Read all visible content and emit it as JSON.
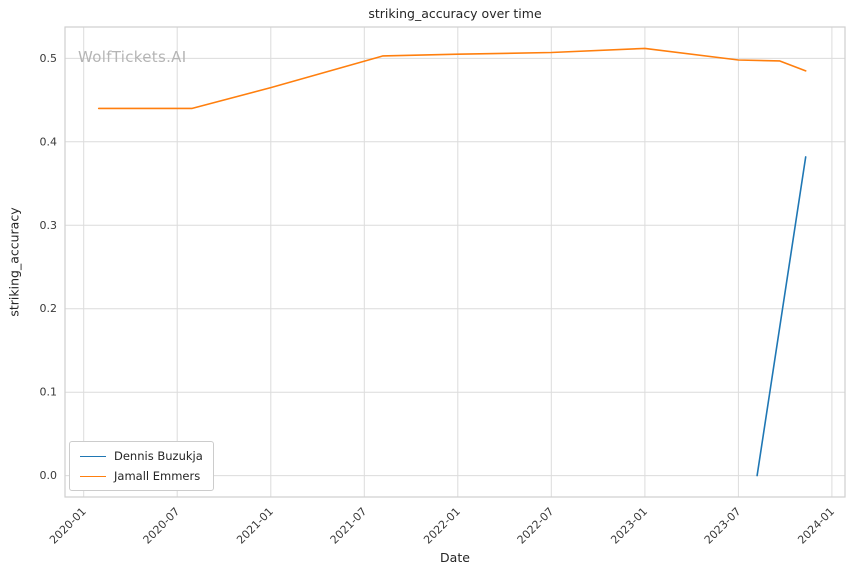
{
  "watermark": "WolfTickets.AI",
  "chart_data": {
    "type": "line",
    "title": "striking_accuracy over time",
    "xlabel": "Date",
    "ylabel": "striking_accuracy",
    "xlim": [
      2019.9,
      2024.07
    ],
    "ylim": [
      -0.0256,
      0.5376
    ],
    "grid": true,
    "legend_position": "lower left",
    "x_ticks": [
      {
        "value": 2020.0,
        "label": "2020-01"
      },
      {
        "value": 2020.5,
        "label": "2020-07"
      },
      {
        "value": 2021.0,
        "label": "2021-01"
      },
      {
        "value": 2021.5,
        "label": "2021-07"
      },
      {
        "value": 2022.0,
        "label": "2022-01"
      },
      {
        "value": 2022.5,
        "label": "2022-07"
      },
      {
        "value": 2023.0,
        "label": "2023-01"
      },
      {
        "value": 2023.5,
        "label": "2023-07"
      },
      {
        "value": 2024.0,
        "label": "2024-01"
      }
    ],
    "y_ticks": [
      {
        "value": 0.0,
        "label": "0.0"
      },
      {
        "value": 0.1,
        "label": "0.1"
      },
      {
        "value": 0.2,
        "label": "0.2"
      },
      {
        "value": 0.3,
        "label": "0.3"
      },
      {
        "value": 0.4,
        "label": "0.4"
      },
      {
        "value": 0.5,
        "label": "0.5"
      }
    ],
    "series": [
      {
        "name": "Dennis Buzukja",
        "color": "#1f77b4",
        "points": [
          [
            2023.6,
            0.0
          ],
          [
            2023.86,
            0.382
          ]
        ]
      },
      {
        "name": "Jamall Emmers",
        "color": "#ff7f0e",
        "points": [
          [
            2020.08,
            0.44
          ],
          [
            2020.58,
            0.44
          ],
          [
            2021.0,
            0.465
          ],
          [
            2021.6,
            0.503
          ],
          [
            2022.0,
            0.505
          ],
          [
            2022.5,
            0.507
          ],
          [
            2023.0,
            0.512
          ],
          [
            2023.5,
            0.498
          ],
          [
            2023.72,
            0.497
          ],
          [
            2023.86,
            0.485
          ]
        ]
      }
    ]
  }
}
